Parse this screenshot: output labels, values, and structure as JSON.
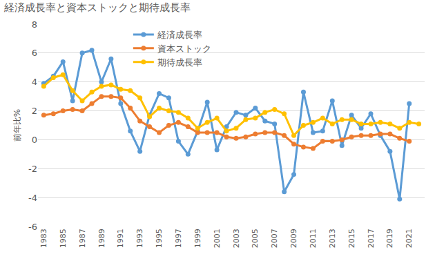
{
  "chart_data": {
    "type": "line",
    "title": "経済成長率と資本ストックと期待成長率",
    "y_label": "前年比%",
    "categories": [
      "1983",
      null,
      "1985",
      null,
      "1987",
      null,
      "1989",
      null,
      "1991",
      null,
      "1993",
      null,
      "1995",
      null,
      "1997",
      null,
      "1999",
      null,
      "2001",
      null,
      "2003",
      null,
      "2005",
      null,
      "2007",
      null,
      "2009",
      null,
      "2011",
      null,
      "2013",
      null,
      "2015",
      null,
      "2017",
      null,
      "2019",
      null,
      "2021",
      null
    ],
    "series": [
      {
        "name": "経済成長率",
        "color": "#5b9bd5",
        "marker": "circle",
        "values": [
          3.9,
          4.4,
          5.4,
          2.7,
          6.0,
          6.2,
          4.0,
          5.6,
          2.5,
          0.6,
          -0.8,
          1.7,
          3.2,
          2.9,
          -0.1,
          -1.0,
          0.6,
          2.6,
          -0.7,
          0.9,
          1.9,
          1.7,
          2.2,
          1.3,
          1.1,
          -3.6,
          -2.4,
          3.3,
          0.5,
          0.6,
          2.7,
          -0.4,
          1.7,
          0.8,
          1.8,
          0.3,
          -0.8,
          -4.1,
          2.5,
          null
        ]
      },
      {
        "name": "資本ストック",
        "color": "#ed7d31",
        "marker": "circle",
        "values": [
          1.7,
          1.8,
          2.0,
          2.1,
          2.0,
          2.5,
          3.0,
          3.0,
          2.9,
          2.2,
          1.3,
          0.9,
          0.5,
          1.0,
          1.2,
          0.9,
          0.5,
          0.5,
          0.5,
          0.2,
          0.1,
          0.2,
          0.4,
          0.5,
          0.5,
          0.3,
          -0.3,
          -0.5,
          -0.6,
          -0.1,
          -0.1,
          0.0,
          0.2,
          0.3,
          0.3,
          0.4,
          0.4,
          0.1,
          -0.1,
          null
        ]
      },
      {
        "name": "期待成長率",
        "color": "#ffc000",
        "marker": "circle",
        "values": [
          3.7,
          4.3,
          4.5,
          3.4,
          2.7,
          3.3,
          3.7,
          3.8,
          3.5,
          3.4,
          2.9,
          1.6,
          2.2,
          2.0,
          1.9,
          1.5,
          0.8,
          1.2,
          1.5,
          0.6,
          0.8,
          1.4,
          1.5,
          1.9,
          2.1,
          1.8,
          0.3,
          1.0,
          1.2,
          1.5,
          1.1,
          1.4,
          1.4,
          1.1,
          1.1,
          1.2,
          1.1,
          0.8,
          1.2,
          1.1
        ]
      }
    ],
    "ylim": [
      -6,
      8
    ],
    "yticks": [
      -6,
      -4,
      -2,
      0,
      2,
      4,
      6,
      8
    ],
    "grid": true,
    "legend": "top"
  }
}
